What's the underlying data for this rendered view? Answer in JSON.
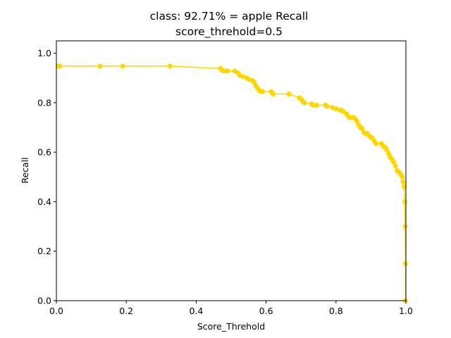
{
  "chart_data": {
    "type": "line",
    "title": "class: 92.71% = apple Recall",
    "subtitle": "score_threhold=0.5",
    "xlabel": "Score_Threhold",
    "ylabel": "Recall",
    "xlim": [
      0.0,
      1.0
    ],
    "ylim": [
      0.0,
      1.05
    ],
    "xticks": [
      "0.0",
      "0.2",
      "0.4",
      "0.6",
      "0.8",
      "1.0"
    ],
    "yticks": [
      "0.0",
      "0.2",
      "0.4",
      "0.6",
      "0.8",
      "1.0"
    ],
    "grid": false,
    "line_color": "#FFD700",
    "series": [
      {
        "x": [
          0.005,
          0.01,
          0.125,
          0.19,
          0.325,
          0.47,
          0.475,
          0.48,
          0.49,
          0.51,
          0.52,
          0.525,
          0.535,
          0.545,
          0.55,
          0.56,
          0.565,
          0.57,
          0.575,
          0.58,
          0.585,
          0.59,
          0.615,
          0.62,
          0.665,
          0.695,
          0.7,
          0.705,
          0.71,
          0.73,
          0.735,
          0.745,
          0.77,
          0.775,
          0.79,
          0.8,
          0.81,
          0.815,
          0.82,
          0.83,
          0.835,
          0.84,
          0.845,
          0.85,
          0.855,
          0.86,
          0.865,
          0.87,
          0.875,
          0.88,
          0.885,
          0.89,
          0.895,
          0.9,
          0.905,
          0.91,
          0.915,
          0.93,
          0.935,
          0.94,
          0.945,
          0.95,
          0.955,
          0.96,
          0.965,
          0.97,
          0.975,
          0.98,
          0.985,
          0.99,
          0.992,
          0.995,
          0.997,
          0.998,
          0.999,
          0.999
        ],
        "y": [
          0.948,
          0.948,
          0.948,
          0.948,
          0.948,
          0.938,
          0.93,
          0.928,
          0.928,
          0.928,
          0.92,
          0.91,
          0.905,
          0.9,
          0.895,
          0.89,
          0.885,
          0.87,
          0.86,
          0.85,
          0.845,
          0.845,
          0.845,
          0.835,
          0.835,
          0.82,
          0.815,
          0.805,
          0.8,
          0.795,
          0.79,
          0.79,
          0.79,
          0.785,
          0.78,
          0.775,
          0.77,
          0.77,
          0.765,
          0.755,
          0.745,
          0.74,
          0.74,
          0.74,
          0.735,
          0.725,
          0.71,
          0.7,
          0.695,
          0.68,
          0.675,
          0.675,
          0.665,
          0.66,
          0.655,
          0.645,
          0.635,
          0.635,
          0.625,
          0.62,
          0.61,
          0.595,
          0.58,
          0.57,
          0.56,
          0.545,
          0.525,
          0.52,
          0.51,
          0.5,
          0.48,
          0.46,
          0.4,
          0.3,
          0.15,
          0.0
        ]
      }
    ]
  }
}
